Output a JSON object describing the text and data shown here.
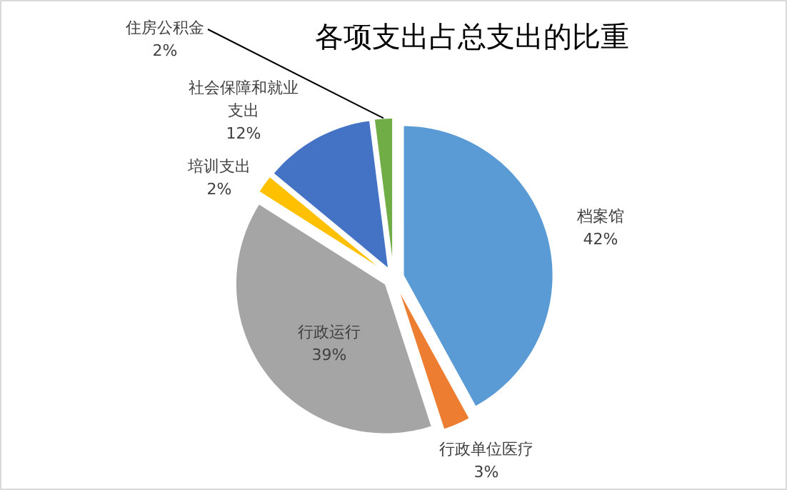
{
  "chart_data": {
    "type": "pie",
    "title": "各项支出占总支出的比重",
    "categories": [
      "档案馆",
      "行政单位医疗",
      "行政运行",
      "培训支出",
      "社会保障和就业支出",
      "住房公积金"
    ],
    "values": [
      42,
      3,
      39,
      2,
      12,
      2
    ],
    "colors": [
      "#5b9bd5",
      "#ed7d31",
      "#a5a5a5",
      "#ffc000",
      "#4472c4",
      "#70ad47"
    ],
    "value_labels": [
      "42%",
      "3%",
      "39%",
      "2%",
      "12%",
      "2%"
    ]
  }
}
